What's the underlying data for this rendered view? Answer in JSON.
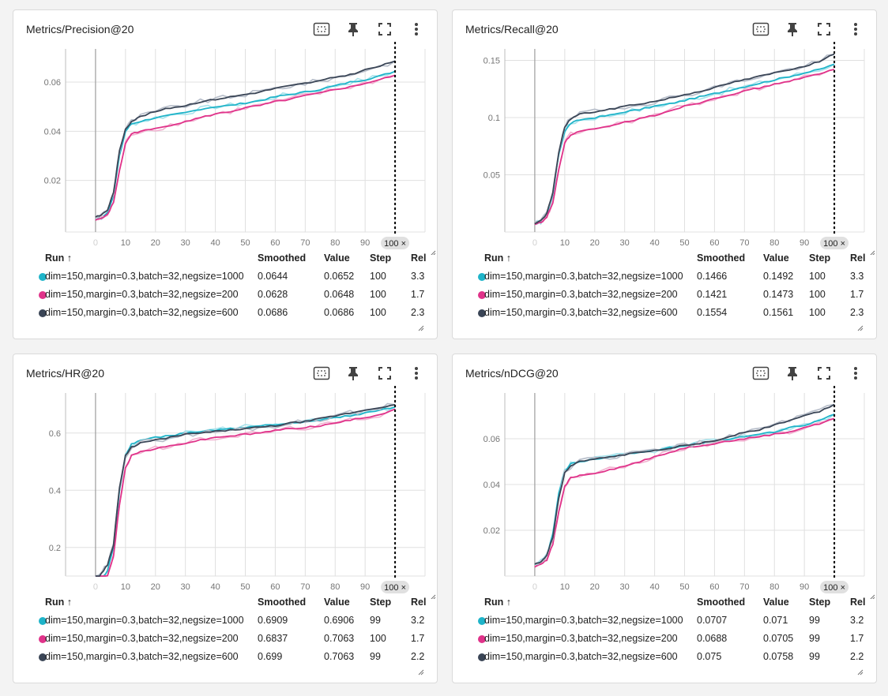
{
  "colors": {
    "cyan": "#1fb4c9",
    "pink": "#e0338a",
    "navy": "#3a4556",
    "cyan_raw": "#a8e3ec",
    "pink_raw": "#f1b2d0",
    "navy_raw": "#b6bdc9"
  },
  "icons": [
    "fit-domain-icon",
    "pin-icon",
    "fullscreen-icon",
    "more-vert-icon"
  ],
  "table_headers": {
    "run": "Run ↑",
    "smoothed": "Smoothed",
    "value": "Value",
    "step": "Step",
    "rel": "Rel"
  },
  "step_badge": "100 ×",
  "panels": [
    {
      "title": "Metrics/Precision@20",
      "rows": [
        {
          "run": "dim=150,margin=0.3,batch=32,negsize=1000",
          "smoothed": "0.0644",
          "value": "0.0652",
          "step": "100",
          "rel": "3.3"
        },
        {
          "run": "dim=150,margin=0.3,batch=32,negsize=200",
          "smoothed": "0.0628",
          "value": "0.0648",
          "step": "100",
          "rel": "1.7"
        },
        {
          "run": "dim=150,margin=0.3,batch=32,negsize=600",
          "smoothed": "0.0686",
          "value": "0.0686",
          "step": "100",
          "rel": "2.3"
        }
      ]
    },
    {
      "title": "Metrics/Recall@20",
      "rows": [
        {
          "run": "dim=150,margin=0.3,batch=32,negsize=1000",
          "smoothed": "0.1466",
          "value": "0.1492",
          "step": "100",
          "rel": "3.3"
        },
        {
          "run": "dim=150,margin=0.3,batch=32,negsize=200",
          "smoothed": "0.1421",
          "value": "0.1473",
          "step": "100",
          "rel": "1.7"
        },
        {
          "run": "dim=150,margin=0.3,batch=32,negsize=600",
          "smoothed": "0.1554",
          "value": "0.1561",
          "step": "100",
          "rel": "2.3"
        }
      ]
    },
    {
      "title": "Metrics/HR@20",
      "rows": [
        {
          "run": "dim=150,margin=0.3,batch=32,negsize=1000",
          "smoothed": "0.6909",
          "value": "0.6906",
          "step": "99",
          "rel": "3.2"
        },
        {
          "run": "dim=150,margin=0.3,batch=32,negsize=200",
          "smoothed": "0.6837",
          "value": "0.7063",
          "step": "100",
          "rel": "1.7"
        },
        {
          "run": "dim=150,margin=0.3,batch=32,negsize=600",
          "smoothed": "0.699",
          "value": "0.7063",
          "step": "99",
          "rel": "2.2"
        }
      ]
    },
    {
      "title": "Metrics/nDCG@20",
      "rows": [
        {
          "run": "dim=150,margin=0.3,batch=32,negsize=1000",
          "smoothed": "0.0707",
          "value": "0.071",
          "step": "99",
          "rel": "3.2"
        },
        {
          "run": "dim=150,margin=0.3,batch=32,negsize=200",
          "smoothed": "0.0688",
          "value": "0.0705",
          "step": "99",
          "rel": "1.7"
        },
        {
          "run": "dim=150,margin=0.3,batch=32,negsize=600",
          "smoothed": "0.075",
          "value": "0.0758",
          "step": "99",
          "rel": "2.2"
        }
      ]
    }
  ],
  "chart_data": [
    {
      "type": "line",
      "xlim": [
        -10,
        110
      ],
      "ylim": [
        -0.001,
        0.0735
      ],
      "xticks": [
        "0",
        "10",
        "20",
        "30",
        "40",
        "50",
        "60",
        "70",
        "80",
        "90"
      ],
      "yticks": [
        "0.02",
        "0.04",
        "0.06"
      ],
      "x": [
        0,
        2,
        4,
        6,
        8,
        10,
        12,
        15,
        20,
        25,
        30,
        35,
        40,
        45,
        50,
        55,
        60,
        65,
        70,
        75,
        80,
        85,
        90,
        95,
        100
      ],
      "series": [
        {
          "name": "dim=150,margin=0.3,batch=32,negsize=1000",
          "color": "cyan",
          "values": [
            0.004,
            0.005,
            0.007,
            0.014,
            0.03,
            0.04,
            0.043,
            0.044,
            0.0455,
            0.0465,
            0.0475,
            0.049,
            0.05,
            0.0505,
            0.0515,
            0.0525,
            0.054,
            0.055,
            0.056,
            0.057,
            0.0585,
            0.06,
            0.061,
            0.0625,
            0.0644
          ]
        },
        {
          "name": "dim=150,margin=0.3,batch=32,negsize=200",
          "color": "pink",
          "values": [
            0.004,
            0.0045,
            0.006,
            0.011,
            0.024,
            0.035,
            0.039,
            0.04,
            0.041,
            0.0425,
            0.044,
            0.0455,
            0.047,
            0.048,
            0.0495,
            0.0505,
            0.052,
            0.053,
            0.0545,
            0.0555,
            0.057,
            0.058,
            0.0595,
            0.061,
            0.0628
          ]
        },
        {
          "name": "dim=150,margin=0.3,batch=32,negsize=600",
          "color": "navy",
          "values": [
            0.005,
            0.006,
            0.008,
            0.015,
            0.032,
            0.041,
            0.044,
            0.046,
            0.048,
            0.0495,
            0.0505,
            0.052,
            0.053,
            0.054,
            0.055,
            0.056,
            0.0575,
            0.0585,
            0.0595,
            0.0605,
            0.062,
            0.063,
            0.065,
            0.0665,
            0.0686
          ]
        }
      ]
    },
    {
      "type": "line",
      "xlim": [
        -10,
        110
      ],
      "ylim": [
        0,
        0.16
      ],
      "xticks": [
        "0",
        "10",
        "20",
        "30",
        "40",
        "50",
        "60",
        "70",
        "80",
        "90"
      ],
      "yticks": [
        "0.05",
        "0.1",
        "0.15"
      ],
      "x": [
        0,
        2,
        4,
        6,
        8,
        10,
        12,
        15,
        20,
        25,
        30,
        35,
        40,
        45,
        50,
        55,
        60,
        65,
        70,
        75,
        80,
        85,
        90,
        95,
        100
      ],
      "series": [
        {
          "name": "dim=150,margin=0.3,batch=32,negsize=1000",
          "color": "cyan",
          "values": [
            0.007,
            0.009,
            0.015,
            0.032,
            0.068,
            0.088,
            0.095,
            0.098,
            0.1,
            0.102,
            0.105,
            0.107,
            0.11,
            0.112,
            0.115,
            0.118,
            0.121,
            0.124,
            0.127,
            0.13,
            0.133,
            0.136,
            0.139,
            0.142,
            0.1466
          ]
        },
        {
          "name": "dim=150,margin=0.3,batch=32,negsize=200",
          "color": "pink",
          "values": [
            0.007,
            0.008,
            0.013,
            0.025,
            0.055,
            0.078,
            0.085,
            0.088,
            0.09,
            0.092,
            0.096,
            0.099,
            0.102,
            0.106,
            0.11,
            0.113,
            0.117,
            0.12,
            0.123,
            0.126,
            0.129,
            0.132,
            0.135,
            0.138,
            0.1421
          ]
        },
        {
          "name": "dim=150,margin=0.3,batch=32,negsize=600",
          "color": "navy",
          "values": [
            0.007,
            0.01,
            0.016,
            0.034,
            0.07,
            0.092,
            0.099,
            0.103,
            0.105,
            0.107,
            0.11,
            0.112,
            0.114,
            0.117,
            0.12,
            0.123,
            0.126,
            0.13,
            0.133,
            0.136,
            0.139,
            0.142,
            0.145,
            0.149,
            0.1554
          ]
        }
      ]
    },
    {
      "type": "line",
      "xlim": [
        -10,
        110
      ],
      "ylim": [
        0.1,
        0.74
      ],
      "xticks": [
        "0",
        "10",
        "20",
        "30",
        "40",
        "50",
        "60",
        "70",
        "80",
        "90"
      ],
      "yticks": [
        "0.2",
        "0.4",
        "0.6"
      ],
      "x": [
        0,
        2,
        4,
        6,
        8,
        10,
        12,
        15,
        20,
        25,
        30,
        35,
        40,
        45,
        50,
        55,
        60,
        65,
        70,
        75,
        80,
        85,
        90,
        95,
        100
      ],
      "series": [
        {
          "name": "dim=150,margin=0.3,batch=32,negsize=1000",
          "color": "cyan",
          "values": [
            0.05,
            0.08,
            0.12,
            0.2,
            0.4,
            0.52,
            0.56,
            0.575,
            0.585,
            0.59,
            0.6,
            0.605,
            0.61,
            0.615,
            0.62,
            0.625,
            0.63,
            0.635,
            0.64,
            0.645,
            0.655,
            0.66,
            0.67,
            0.68,
            0.6909
          ]
        },
        {
          "name": "dim=150,margin=0.3,batch=32,negsize=200",
          "color": "pink",
          "values": [
            0.05,
            0.07,
            0.1,
            0.17,
            0.35,
            0.48,
            0.52,
            0.535,
            0.545,
            0.555,
            0.565,
            0.575,
            0.585,
            0.59,
            0.595,
            0.6,
            0.61,
            0.615,
            0.62,
            0.625,
            0.635,
            0.645,
            0.655,
            0.665,
            0.6837
          ]
        },
        {
          "name": "dim=150,margin=0.3,batch=32,negsize=600",
          "color": "navy",
          "values": [
            0.08,
            0.11,
            0.14,
            0.21,
            0.41,
            0.52,
            0.55,
            0.565,
            0.575,
            0.585,
            0.595,
            0.6,
            0.605,
            0.61,
            0.615,
            0.62,
            0.625,
            0.635,
            0.64,
            0.65,
            0.66,
            0.67,
            0.68,
            0.69,
            0.699
          ]
        }
      ]
    },
    {
      "type": "line",
      "xlim": [
        -10,
        110
      ],
      "ylim": [
        0,
        0.08
      ],
      "xticks": [
        "0",
        "10",
        "20",
        "30",
        "40",
        "50",
        "60",
        "70",
        "80",
        "90"
      ],
      "yticks": [
        "0.02",
        "0.04",
        "0.06"
      ],
      "x": [
        0,
        2,
        4,
        6,
        8,
        10,
        12,
        15,
        20,
        25,
        30,
        35,
        40,
        45,
        50,
        55,
        60,
        65,
        70,
        75,
        80,
        85,
        90,
        95,
        100
      ],
      "series": [
        {
          "name": "dim=150,margin=0.3,batch=32,negsize=1000",
          "color": "cyan",
          "values": [
            0.005,
            0.006,
            0.009,
            0.018,
            0.036,
            0.046,
            0.049,
            0.05,
            0.051,
            0.052,
            0.053,
            0.054,
            0.055,
            0.056,
            0.057,
            0.058,
            0.059,
            0.06,
            0.061,
            0.062,
            0.063,
            0.065,
            0.066,
            0.068,
            0.0707
          ]
        },
        {
          "name": "dim=150,margin=0.3,batch=32,negsize=200",
          "color": "pink",
          "values": [
            0.004,
            0.005,
            0.007,
            0.014,
            0.028,
            0.039,
            0.043,
            0.044,
            0.045,
            0.0465,
            0.048,
            0.05,
            0.052,
            0.054,
            0.056,
            0.057,
            0.058,
            0.059,
            0.06,
            0.061,
            0.062,
            0.063,
            0.065,
            0.0665,
            0.0688
          ]
        },
        {
          "name": "dim=150,margin=0.3,batch=32,negsize=600",
          "color": "navy",
          "values": [
            0.005,
            0.006,
            0.009,
            0.017,
            0.034,
            0.045,
            0.048,
            0.05,
            0.051,
            0.052,
            0.053,
            0.054,
            0.055,
            0.056,
            0.057,
            0.058,
            0.059,
            0.061,
            0.063,
            0.064,
            0.066,
            0.068,
            0.07,
            0.072,
            0.075
          ]
        }
      ]
    }
  ]
}
